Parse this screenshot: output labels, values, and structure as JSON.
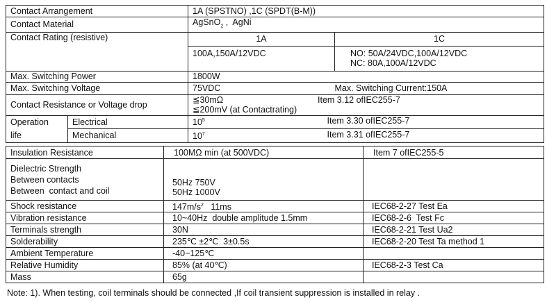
{
  "table1": {
    "contact_arrangement": {
      "label": "Contact Arrangement",
      "value": "1A (SPSTNO) ,1C (SPDT(B-M))"
    },
    "contact_material": {
      "label": "Contact Material",
      "value_base": "AgSnO",
      "value_sub": "2",
      "value_rest": " ,  AgNi"
    },
    "contact_rating": {
      "label": "Contact Rating (resistive)",
      "col_1a": "1A",
      "col_1c": "1C",
      "val_1a": "100A,150A/12VDC",
      "val_1c_no": "NO: 50A/24VDC,100A/12VDC",
      "val_1c_nc": "NC: 80A,100A/12VDC"
    },
    "max_power": {
      "label": "Max. Switching Power",
      "value": "1800W"
    },
    "max_voltage": {
      "label": "Max. Switching Voltage",
      "value": "75VDC",
      "current": "Max. Switching Current:150A"
    },
    "contact_resistance": {
      "label": "Contact Resistance or Voltage drop",
      "value1": "≦30mΩ",
      "value2": "≦200mV (at Contactrating)",
      "ref": "Item 3.12 ofIEC255-7"
    },
    "operation_life": {
      "label1": "Operation",
      "label2": "life",
      "electrical": {
        "label": "Electrical",
        "base": "10",
        "exp": "5",
        "ref": "Item 3.30 ofIEC255-7"
      },
      "mechanical": {
        "label": "Mechanical",
        "base": "10",
        "exp": "7",
        "ref": "Item 3.31 ofIEC255-7"
      }
    }
  },
  "table2": {
    "insulation": {
      "label": "Insulation Resistance",
      "value": "100MΩ min (at 500VDC)",
      "ref": "Item 7 ofIEC255-5"
    },
    "dielectric": {
      "label": "Dielectric Strength",
      "sub1": "Between contacts",
      "sub2": "Between  contact and coil",
      "val1": "50Hz 750V",
      "val2": "50Hz 1000V"
    },
    "shock": {
      "label": "Shock resistance",
      "value_base": "147m/s",
      "value_exp": "2",
      "value_rest": "   11ms",
      "ref": "IEC68-2-27 Test Ea"
    },
    "rows": [
      {
        "label": "Vibration resistance",
        "value": "10~40Hz  double amplitude 1.5mm",
        "ref": "IEC68-2-6  Test Fc"
      },
      {
        "label": "Terminals strength",
        "value": "30N",
        "ref": "IEC68-2-21 Test Ua2"
      },
      {
        "label": "Solderability",
        "value": "235℃ ±2℃  3±0.5s",
        "ref": "IEC68-2-20 Test Ta method 1"
      },
      {
        "label": "Ambient Temperature",
        "value": "-40~125℃",
        "ref": ""
      },
      {
        "label": "Relative Humidity",
        "value": "85% (at 40℃)",
        "ref": "IEC68-2-3 Test Ca"
      },
      {
        "label": "Mass",
        "value": "65g",
        "ref": ""
      }
    ]
  },
  "note": "Note: 1). When testing, coil terminals should be connected ,If coil transient suppression is installed in relay ."
}
